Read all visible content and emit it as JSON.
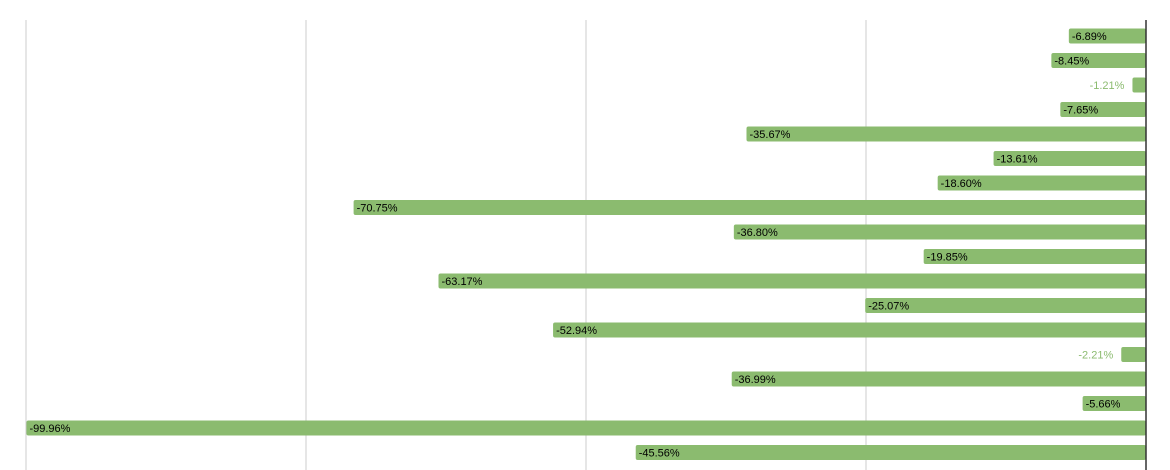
{
  "chart_data": {
    "type": "bar",
    "orientation": "horizontal",
    "values": [
      -6.89,
      -8.45,
      -1.21,
      -7.65,
      -35.67,
      -13.61,
      -18.6,
      -70.75,
      -36.8,
      -19.85,
      -63.17,
      -25.07,
      -52.94,
      -2.21,
      -36.99,
      -5.66,
      -99.96,
      -45.56
    ],
    "labels": [
      "-6.89%",
      "-8.45%",
      "-1.21%",
      "-7.65%",
      "-35.67%",
      "-13.61%",
      "-18.60%",
      "-70.75%",
      "-36.80%",
      "-19.85%",
      "-63.17%",
      "-25.07%",
      "-52.94%",
      "-2.21%",
      "-36.99%",
      "-5.66%",
      "-99.96%",
      "-45.56%"
    ],
    "xlim": [
      -100,
      0
    ],
    "grid": true,
    "colors": {
      "bar": "#8bbb6f",
      "label_inside": "#000000",
      "label_outside": "#8bbb6f",
      "grid": "#cccccc",
      "axis": "#333333"
    }
  }
}
